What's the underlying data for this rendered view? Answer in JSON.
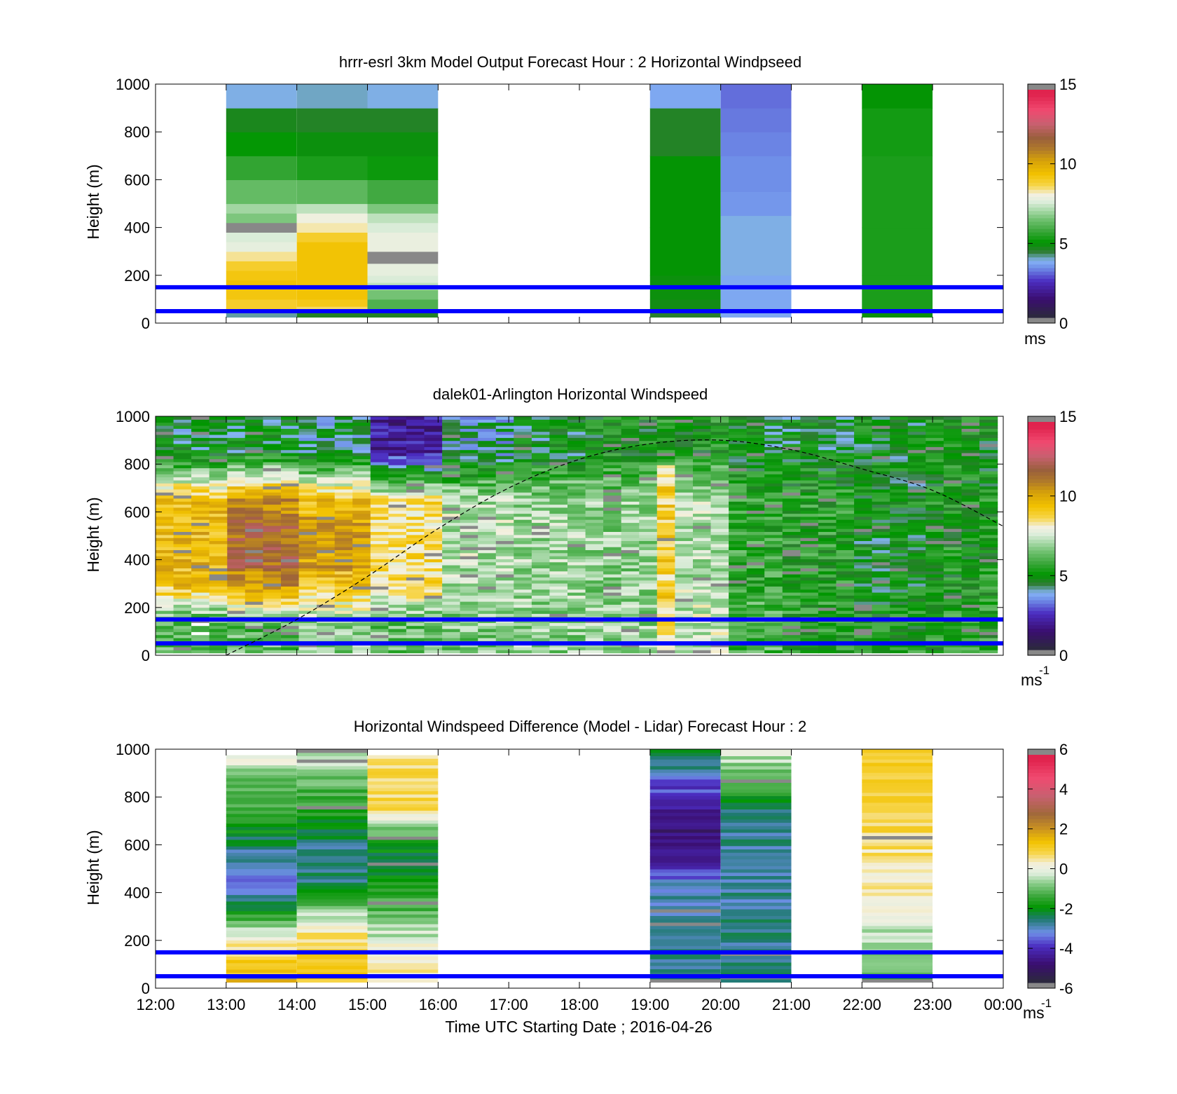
{
  "colors": {
    "windspeed": [
      "#2b2b3a",
      "#3a0e6e",
      "#4b2cc0",
      "#6f8fe8",
      "#86b4f5",
      "#2e7d32",
      "#009600",
      "#3aa63a",
      "#6fc06f",
      "#a7d8a7",
      "#dfeedd",
      "#f3f0e0",
      "#f7d54a",
      "#f2c200",
      "#d6a10a",
      "#b07a2a",
      "#9a5f3c",
      "#c86070",
      "#f04a70",
      "#e0234e",
      "#888888"
    ],
    "difference": [
      "#2b2b3a",
      "#3a0e6e",
      "#4b2cc0",
      "#6f8fe8",
      "#1f7a70",
      "#009600",
      "#3aa63a",
      "#8fcf8f",
      "#dfeedd",
      "#f3f0e0",
      "#f7d54a",
      "#f2c200",
      "#c89022",
      "#a0693a",
      "#c86070",
      "#f04a70",
      "#e0234e",
      "#888888"
    ],
    "boundary_line": "#0000ff"
  },
  "chart_data": [
    {
      "type": "heatmap",
      "title": "hrrr-esrl 3km Model Output   Forecast Hour : 2 Horizontal Windpseed",
      "xlabel": "",
      "ylabel": "Height (m)",
      "yticks": [
        "0",
        "200",
        "400",
        "600",
        "800",
        "1000"
      ],
      "ylim": [
        0,
        1000
      ],
      "xlim": [
        "12:00",
        "00:00"
      ],
      "colorbar": {
        "ticks": [
          "0",
          "5",
          "10",
          "15"
        ],
        "range": [
          0,
          15
        ],
        "unit": "ms"
      },
      "lines_m": [
        50,
        150
      ],
      "columns": [
        {
          "start": "13:00",
          "end": "14:00",
          "cells": [
            [
              25,
              45,
              4.0
            ],
            [
              45,
              60,
              8.6
            ],
            [
              60,
              100,
              9.0
            ],
            [
              100,
              140,
              9.3
            ],
            [
              140,
              180,
              9.5
            ],
            [
              180,
              220,
              9.3
            ],
            [
              220,
              260,
              9.0
            ],
            [
              260,
              300,
              8.4
            ],
            [
              300,
              340,
              7.8
            ],
            [
              340,
              380,
              7.6
            ],
            [
              380,
              420,
              -1
            ],
            [
              420,
              460,
              6.6
            ],
            [
              460,
              500,
              7.0
            ],
            [
              500,
              600,
              6.3
            ],
            [
              600,
              700,
              5.6
            ],
            [
              700,
              800,
              5.0
            ],
            [
              800,
              900,
              4.6
            ],
            [
              900,
              1000,
              3.8
            ]
          ]
        },
        {
          "start": "14:00",
          "end": "15:00",
          "cells": [
            [
              25,
              45,
              4.5
            ],
            [
              45,
              70,
              8.6
            ],
            [
              70,
              100,
              9.2
            ],
            [
              100,
              340,
              9.4
            ],
            [
              340,
              380,
              9.0
            ],
            [
              380,
              420,
              8.3
            ],
            [
              420,
              460,
              8.0
            ],
            [
              460,
              500,
              7.3
            ],
            [
              500,
              600,
              6.2
            ],
            [
              600,
              700,
              5.3
            ],
            [
              700,
              800,
              4.8
            ],
            [
              800,
              900,
              4.5
            ],
            [
              900,
              1000,
              3.9
            ]
          ]
        },
        {
          "start": "15:00",
          "end": "16:00",
          "cells": [
            [
              25,
              45,
              4.5
            ],
            [
              45,
              100,
              6.0
            ],
            [
              100,
              140,
              6.5
            ],
            [
              140,
              170,
              7.3
            ],
            [
              170,
              200,
              7.6
            ],
            [
              200,
              250,
              7.8
            ],
            [
              250,
              300,
              -1
            ],
            [
              300,
              380,
              7.9
            ],
            [
              380,
              420,
              7.6
            ],
            [
              420,
              460,
              7.3
            ],
            [
              460,
              500,
              6.6
            ],
            [
              500,
              600,
              5.8
            ],
            [
              600,
              700,
              5.1
            ],
            [
              700,
              800,
              4.8
            ],
            [
              800,
              900,
              4.5
            ],
            [
              900,
              1000,
              3.8
            ]
          ]
        },
        {
          "start": "19:00",
          "end": "20:00",
          "cells": [
            [
              25,
              45,
              4.4
            ],
            [
              45,
              100,
              4.7
            ],
            [
              100,
              200,
              4.8
            ],
            [
              200,
              400,
              4.9
            ],
            [
              400,
              700,
              4.9
            ],
            [
              700,
              900,
              4.5
            ],
            [
              900,
              1000,
              3.6
            ]
          ]
        },
        {
          "start": "20:00",
          "end": "21:00",
          "cells": [
            [
              25,
              45,
              3.6
            ],
            [
              45,
              100,
              3.6
            ],
            [
              100,
              200,
              3.6
            ],
            [
              200,
              300,
              3.8
            ],
            [
              300,
              450,
              3.8
            ],
            [
              450,
              550,
              3.4
            ],
            [
              550,
              700,
              3.3
            ],
            [
              700,
              800,
              3.2
            ],
            [
              800,
              900,
              3.1
            ],
            [
              900,
              1000,
              3.0
            ]
          ]
        },
        {
          "start": "22:00",
          "end": "23:00",
          "cells": [
            [
              25,
              45,
              4.8
            ],
            [
              45,
              200,
              5.3
            ],
            [
              200,
              400,
              5.3
            ],
            [
              400,
              700,
              5.3
            ],
            [
              700,
              900,
              5.2
            ],
            [
              900,
              1000,
              4.9
            ]
          ]
        }
      ]
    },
    {
      "type": "heatmap",
      "title": "dalek01-Arlington  Horizontal Windspeed",
      "xlabel": "",
      "ylabel": "Height (m)",
      "yticks": [
        "0",
        "200",
        "400",
        "600",
        "800",
        "1000"
      ],
      "ylim": [
        0,
        1000
      ],
      "xlim": [
        "12:00",
        "00:00"
      ],
      "colorbar": {
        "ticks": [
          "0",
          "5",
          "10",
          "15"
        ],
        "range": [
          0,
          15
        ],
        "unit": "ms",
        "unit_exp": "-1"
      },
      "lines_m": [
        50,
        150
      ],
      "time_range_data": [
        "12:00",
        "23:55"
      ],
      "profile_hours": [
        {
          "start": "12:00",
          "low": 6.0,
          "mid": 9.6,
          "top": 4.5
        },
        {
          "start": "13:00",
          "low": 6.2,
          "mid": 10.8,
          "top": 4.6
        },
        {
          "start": "14:00",
          "low": 6.8,
          "mid": 9.5,
          "top": 4.2
        },
        {
          "start": "15:00",
          "low": 6.4,
          "mid": 8.6,
          "top": 1.8
        },
        {
          "start": "16:00",
          "low": 6.6,
          "mid": 7.2,
          "top": 4.0
        },
        {
          "start": "17:00",
          "low": 6.8,
          "mid": 7.0,
          "top": 4.6
        },
        {
          "start": "18:00",
          "low": 6.8,
          "mid": 6.8,
          "top": 5.0
        },
        {
          "start": "19:00",
          "low": 7.4,
          "mid": 7.2,
          "top": 5.2
        },
        {
          "start": "20:00",
          "low": 6.0,
          "mid": 5.6,
          "top": 4.6
        },
        {
          "start": "21:00",
          "low": 5.4,
          "mid": 5.4,
          "top": 4.7
        },
        {
          "start": "22:00",
          "low": 5.2,
          "mid": 4.8,
          "top": 4.8
        },
        {
          "start": "23:00",
          "low": 5.4,
          "mid": 5.2,
          "top": 5.0
        }
      ],
      "dashed_curve": {
        "times": [
          "13:00",
          "14:00",
          "15:00",
          "16:00",
          "17:00",
          "18:00",
          "19:00",
          "20:00",
          "21:00",
          "22:00",
          "23:00",
          "00:00"
        ],
        "heights": [
          0,
          150,
          330,
          530,
          700,
          820,
          885,
          900,
          860,
          780,
          690,
          540
        ]
      }
    },
    {
      "type": "heatmap",
      "title": "Horizontal Windspeed Difference (Model - Lidar) Forecast Hour : 2",
      "xlabel": "Time UTC  Starting Date ; 2016-04-26",
      "ylabel": "Height (m)",
      "xticks": [
        "12:00",
        "13:00",
        "14:00",
        "15:00",
        "16:00",
        "17:00",
        "18:00",
        "19:00",
        "20:00",
        "21:00",
        "22:00",
        "23:00",
        "00:00"
      ],
      "yticks": [
        "0",
        "200",
        "400",
        "600",
        "800",
        "1000"
      ],
      "ylim": [
        0,
        1000
      ],
      "xlim": [
        "12:00",
        "00:00"
      ],
      "colorbar": {
        "ticks": [
          "-6",
          "-4",
          "-2",
          "0",
          "2",
          "4",
          "6"
        ],
        "range": [
          -6,
          6
        ],
        "unit": "ms",
        "unit_exp": "-1"
      },
      "lines_m": [
        50,
        150
      ],
      "columns": [
        {
          "start": "13:00",
          "end": "14:00",
          "profile": [
            [
              25,
              1.5
            ],
            [
              150,
              0.8
            ],
            [
              250,
              -0.6
            ],
            [
              350,
              -2.6
            ],
            [
              450,
              -3.6
            ],
            [
              550,
              -3.0
            ],
            [
              650,
              -2.2
            ],
            [
              750,
              -1.5
            ],
            [
              900,
              -0.8
            ],
            [
              975,
              0.3
            ]
          ]
        },
        {
          "start": "14:00",
          "end": "15:00",
          "profile": [
            [
              25,
              1.3
            ],
            [
              150,
              1.2
            ],
            [
              250,
              0.4
            ],
            [
              350,
              -1.0
            ],
            [
              450,
              -2.6
            ],
            [
              550,
              -3.0
            ],
            [
              650,
              -2.2
            ],
            [
              800,
              -1.4
            ],
            [
              950,
              -0.6
            ],
            [
              1000,
              -0.3
            ]
          ]
        },
        {
          "start": "15:00",
          "end": "16:00",
          "profile": [
            [
              25,
              0.6
            ],
            [
              150,
              0.3
            ],
            [
              250,
              -0.6
            ],
            [
              350,
              -1.4
            ],
            [
              450,
              -1.8
            ],
            [
              550,
              -2.4
            ],
            [
              650,
              -1.2
            ],
            [
              750,
              0.8
            ],
            [
              850,
              0.9
            ],
            [
              975,
              0.6
            ]
          ]
        },
        {
          "start": "19:00",
          "end": "20:00",
          "profile": [
            [
              25,
              -2.8
            ],
            [
              150,
              -2.8
            ],
            [
              300,
              -2.8
            ],
            [
              450,
              -3.4
            ],
            [
              550,
              -4.6
            ],
            [
              650,
              -5.0
            ],
            [
              750,
              -4.4
            ],
            [
              850,
              -3.8
            ],
            [
              950,
              -2.6
            ],
            [
              1000,
              -2.4
            ]
          ]
        },
        {
          "start": "20:00",
          "end": "21:00",
          "profile": [
            [
              25,
              -2.8
            ],
            [
              150,
              -2.8
            ],
            [
              300,
              -2.9
            ],
            [
              450,
              -2.9
            ],
            [
              550,
              -2.9
            ],
            [
              650,
              -2.9
            ],
            [
              750,
              -2.6
            ],
            [
              850,
              -1.2
            ],
            [
              950,
              -0.6
            ],
            [
              1000,
              -0.1
            ]
          ]
        },
        {
          "start": "22:00",
          "end": "23:00",
          "profile": [
            [
              25,
              -1.2
            ],
            [
              150,
              -0.8
            ],
            [
              250,
              -0.3
            ],
            [
              350,
              0.3
            ],
            [
              450,
              0.4
            ],
            [
              550,
              0.6
            ],
            [
              700,
              0.8
            ],
            [
              850,
              0.9
            ],
            [
              1000,
              1.3
            ]
          ]
        }
      ]
    }
  ]
}
